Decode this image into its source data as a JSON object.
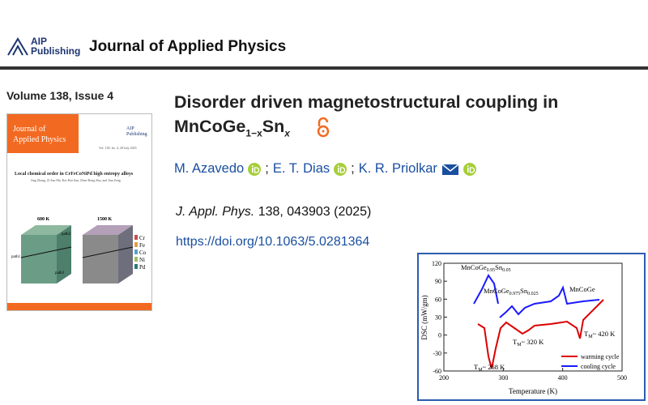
{
  "header": {
    "publisher": [
      "AIP",
      "Publishing"
    ],
    "journal": "Journal of Applied Physics"
  },
  "issue": "Volume 138, Issue 4",
  "cover": {
    "journal": [
      "Journal of",
      "Applied Physics"
    ],
    "publisher": [
      "AIP",
      "Publishing"
    ],
    "info": "Vol. 138, Iss. 4, 28 July 2025",
    "title": "Local chemical order in CrFeCoNiPd high entropy alloys",
    "authors": "Jing Zhang, Zi-Jun Ma, Kai-Hui Sun, Zhen-Rong Shu, and Jian Zeng",
    "panels": [
      "600 K",
      "1500 K"
    ],
    "paths": [
      "path1",
      "path2",
      "path3"
    ],
    "elements": [
      "Cr",
      "Fe",
      "Co",
      "Ni",
      "Pd"
    ]
  },
  "article": {
    "title_line1": "Disorder driven magnetostructural coupling in",
    "title_line2": {
      "base": "MnCoGe",
      "sub1": "1−x",
      "mid": "Sn",
      "sub2": "x"
    },
    "authors": [
      "M. Azavedo",
      "E. T. Dias",
      "K. R. Priolkar"
    ],
    "separator": ";",
    "journal_abbrev": "J. Appl. Phys.",
    "citation": "138, 043903 (2025)",
    "doi": "https://doi.org/10.1063/5.0281364"
  },
  "figure": {
    "xlabel": "Temperature (K)",
    "ylabel": "DSC (mW/gm)",
    "xlim": [
      200,
      500
    ],
    "ylim": [
      -60,
      120
    ],
    "xticks": [
      200,
      300,
      400,
      500
    ],
    "yticks": [
      120,
      90,
      60,
      30,
      0,
      -30,
      -60
    ],
    "annotations": {
      "s05": {
        "base": "MnCoGe",
        "sub1": "0.95",
        "mid": "Sn",
        "sub2": "0.05"
      },
      "s025": {
        "base": "MnCoGe",
        "sub1": "0.975",
        "mid": "Sn",
        "sub2": "0.025"
      },
      "s0": "MnCoGe",
      "tm1": {
        "t": "T",
        "sub": "M",
        "rest": "~ 320 K"
      },
      "tm2": {
        "t": "T",
        "sub": "M",
        "rest": "~ 420 K"
      },
      "tm3": {
        "t": "T",
        "sub": "M",
        "rest": "~ 268 K"
      }
    },
    "legend": [
      "warming cycle",
      "cooling cycle"
    ]
  }
}
